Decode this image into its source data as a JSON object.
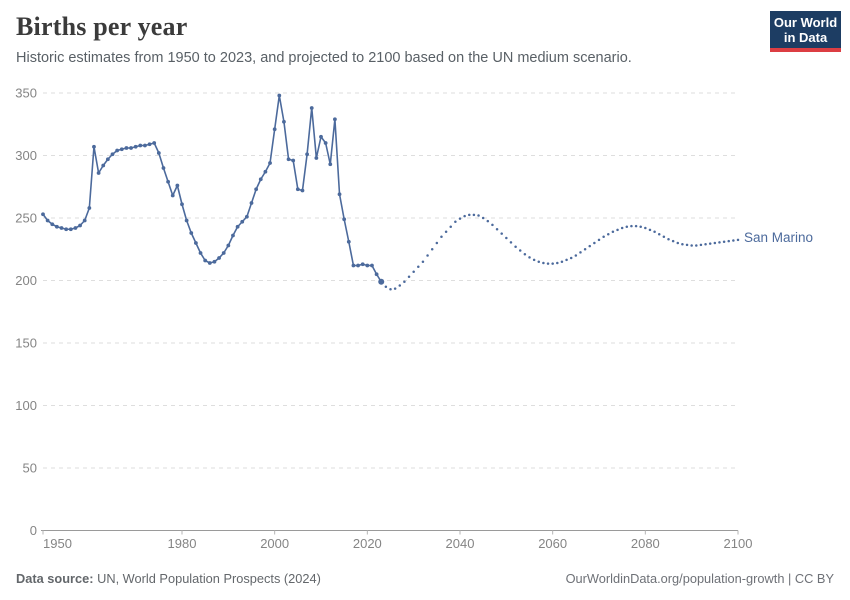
{
  "header": {
    "title": "Births per year",
    "subtitle": "Historic estimates from 1950 to 2023, and projected to 2100 based on the UN medium scenario.",
    "logo": {
      "line1": "Our World",
      "line2": "in Data"
    }
  },
  "chart_data": {
    "type": "line",
    "title": "Births per year",
    "entity_label": "San Marino",
    "xlabel": "",
    "ylabel": "",
    "xlim": [
      1950,
      2100
    ],
    "ylim": [
      0,
      350
    ],
    "x_ticks": [
      1950,
      1980,
      2000,
      2020,
      2040,
      2060,
      2080,
      2100
    ],
    "y_ticks": [
      0,
      50,
      100,
      150,
      200,
      250,
      300,
      350
    ],
    "grid": "horizontal-dashed",
    "legend_position": "end-of-line-label",
    "line_color": "#4c6a9c",
    "projection_split_year": 2023,
    "series": [
      {
        "name": "San Marino (historic estimates)",
        "style": "solid-with-markers",
        "x_start": 1950,
        "x_end": 2023,
        "values": [
          253,
          248,
          245,
          243,
          242,
          241,
          241,
          242,
          244,
          248,
          258,
          307,
          286,
          292,
          297,
          301,
          304,
          305,
          306,
          306,
          307,
          308,
          308,
          309,
          310,
          302,
          290,
          279,
          268,
          276,
          261,
          248,
          238,
          230,
          222,
          216,
          214,
          215,
          218,
          222,
          228,
          236,
          243,
          247,
          251,
          262,
          273,
          281,
          287,
          294,
          321,
          348,
          327,
          297,
          296,
          273,
          272,
          301,
          338,
          298,
          315,
          310,
          293,
          329,
          269,
          249,
          231,
          212,
          212,
          213,
          212,
          212,
          205,
          199
        ]
      },
      {
        "name": "San Marino (UN medium projection)",
        "style": "dotted",
        "x_start": 2023,
        "x_end": 2100,
        "values": [
          199,
          195,
          193,
          193.5,
          196,
          199,
          203,
          207,
          211,
          215,
          220,
          225,
          230,
          235,
          239,
          243,
          247,
          249.5,
          251.5,
          252.5,
          252.5,
          252,
          250,
          247.5,
          244.5,
          241,
          237.5,
          234,
          230.5,
          227,
          224,
          221,
          218.5,
          216.5,
          215,
          214,
          213.5,
          213.5,
          214,
          215,
          216.5,
          218,
          220,
          222.5,
          225,
          227.5,
          230,
          232.5,
          235,
          237,
          239,
          240.5,
          242,
          243,
          243.5,
          243.5,
          243,
          242,
          240.5,
          239,
          237,
          235,
          233,
          231.5,
          230,
          229,
          228.5,
          228,
          228,
          228.5,
          229,
          229.5,
          230,
          230.5,
          231,
          231.5,
          232,
          232.5
        ]
      }
    ],
    "axis_color": "#9a9a9a",
    "gridline_color": "#dedede",
    "tick_label_color": "#858585"
  },
  "footer": {
    "datasource_label": "Data source:",
    "datasource_value": " UN, World Population Prospects (2024)",
    "credit": "OurWorldinData.org/population-growth | CC BY"
  }
}
